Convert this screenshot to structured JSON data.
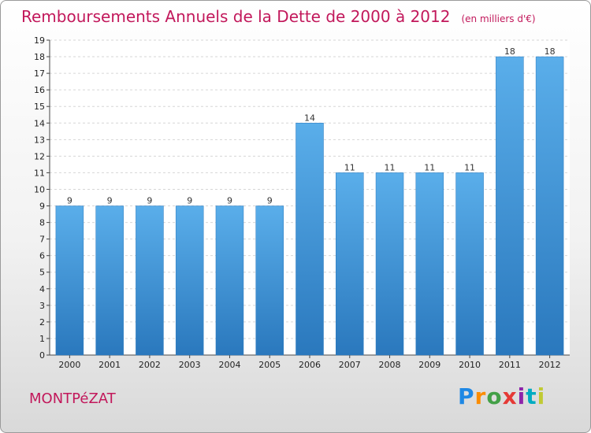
{
  "chart_data": {
    "type": "bar",
    "title": "Remboursements Annuels de la Dette de 2000 à 2012",
    "subtitle": "(en milliers d'€)",
    "categories": [
      "2000",
      "2001",
      "2002",
      "2003",
      "2004",
      "2005",
      "2006",
      "2007",
      "2008",
      "2009",
      "2010",
      "2011",
      "2012"
    ],
    "values": [
      9,
      9,
      9,
      9,
      9,
      9,
      14,
      11,
      11,
      11,
      11,
      18,
      18
    ],
    "ylim": [
      0,
      19
    ],
    "yticks": [
      0,
      1,
      2,
      3,
      4,
      5,
      6,
      7,
      8,
      9,
      10,
      11,
      12,
      13,
      14,
      15,
      16,
      17,
      18,
      19
    ],
    "grid": true,
    "bar_color": "#4a9fe0",
    "bar_color_dark": "#2a78bd"
  },
  "footer": {
    "place": "MONTPéZAT",
    "logo": "Proxiti"
  }
}
